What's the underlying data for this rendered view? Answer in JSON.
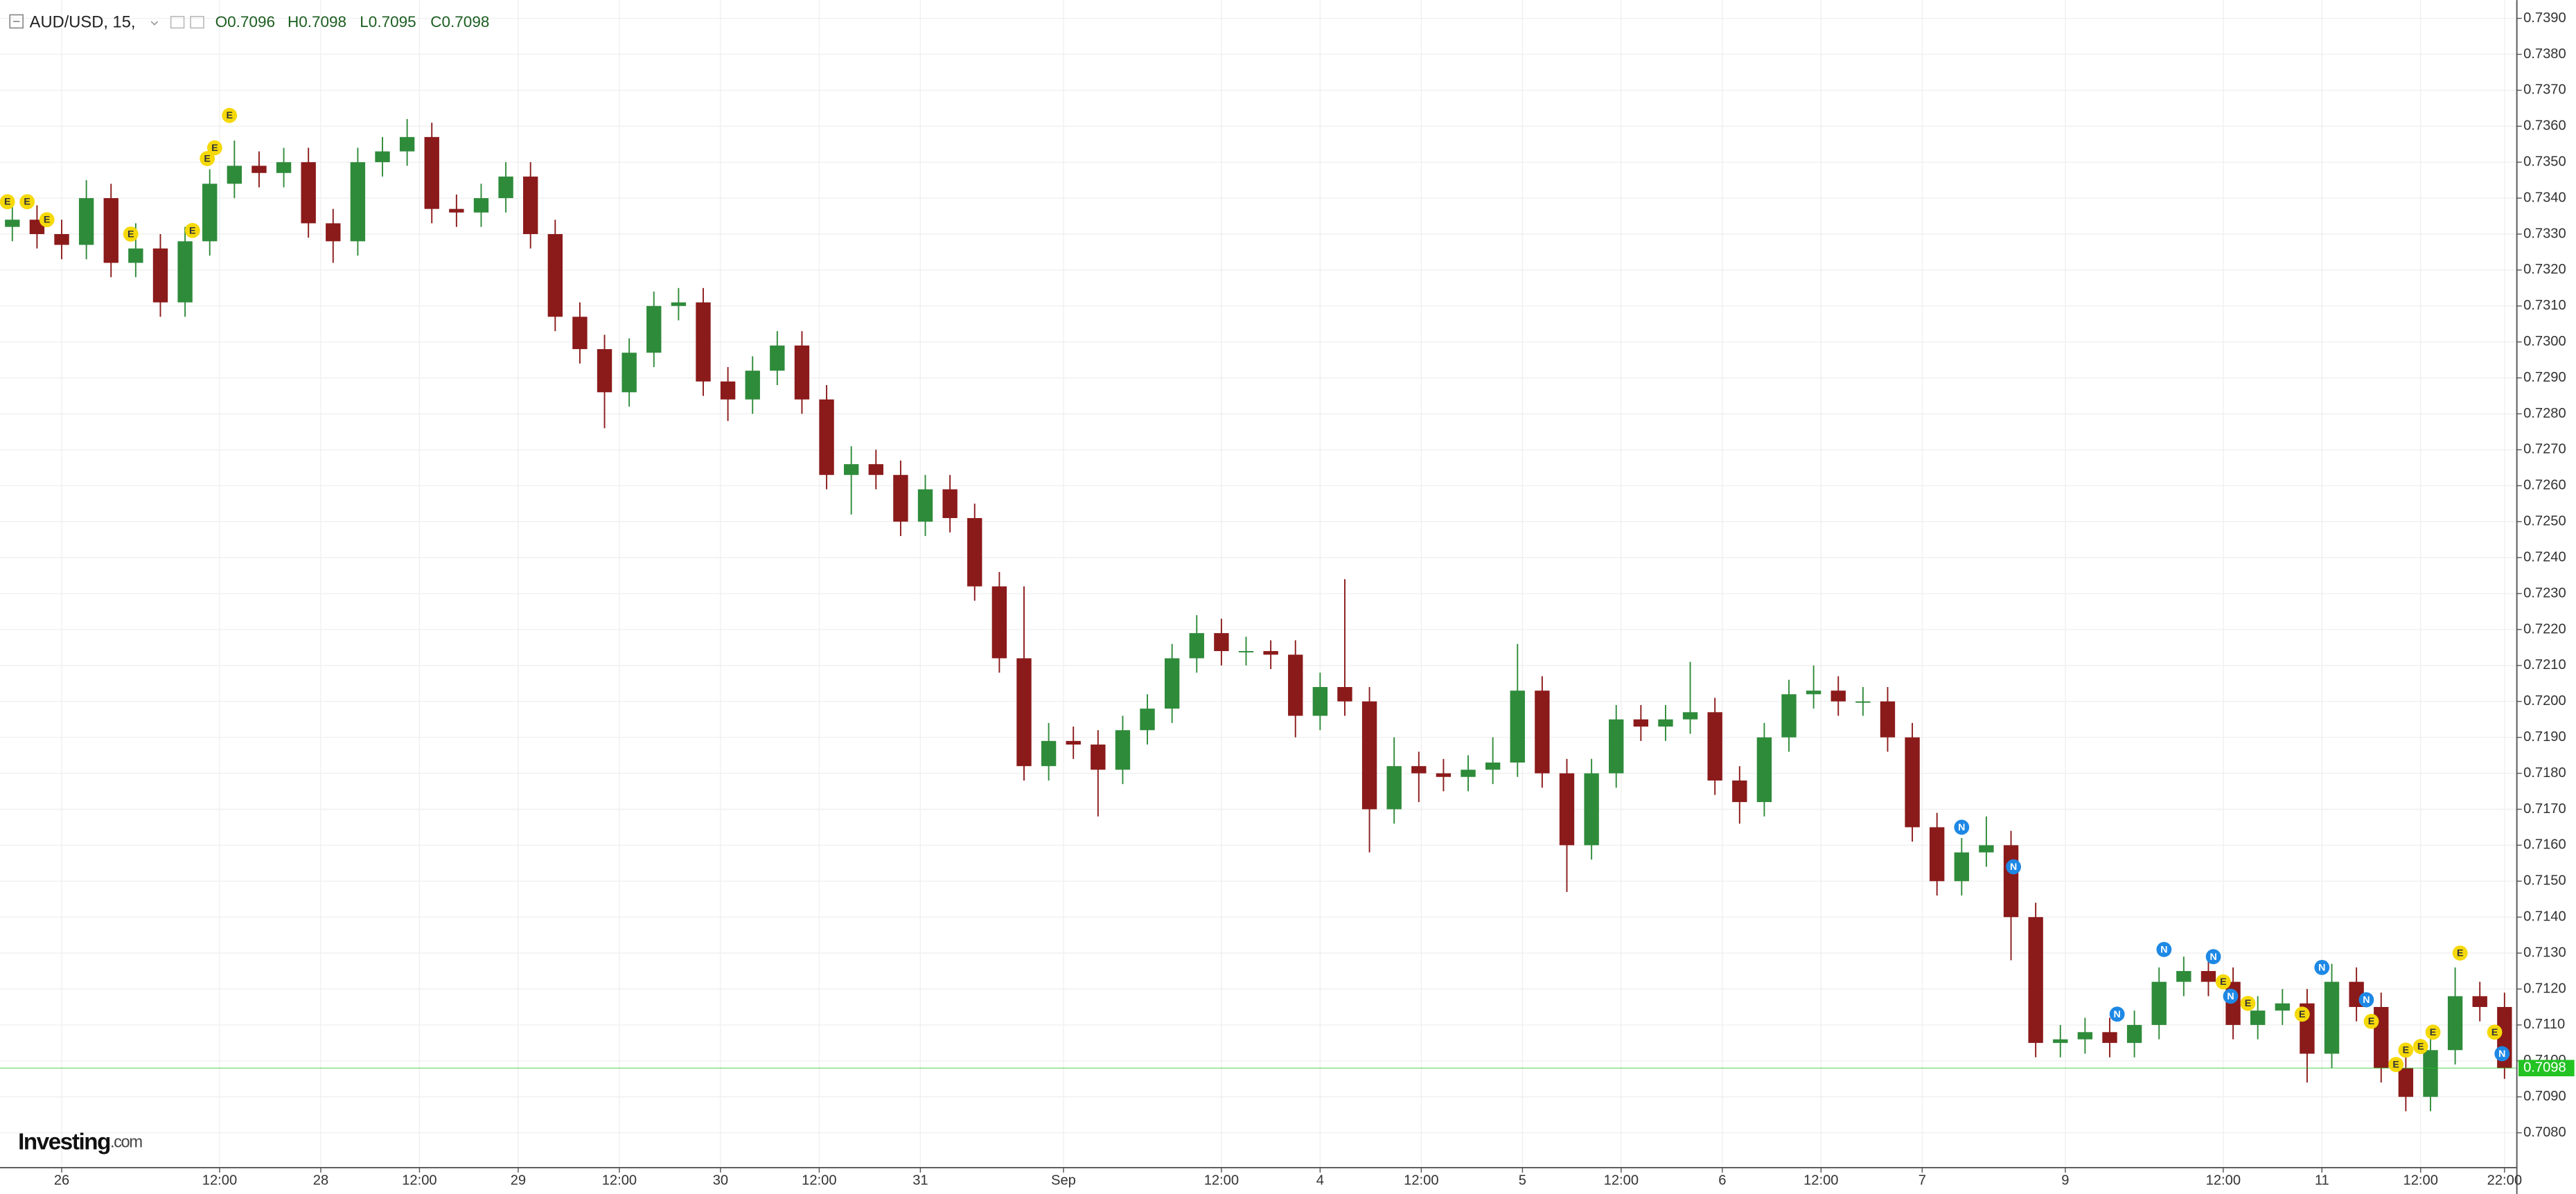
{
  "chart_data": {
    "type": "candlestick",
    "title": "AUD/USD, 15,",
    "ohlc_labels": [
      "O0.7096",
      "H0.7098",
      "L0.7095",
      "C0.7098"
    ],
    "up_color": "#2e8b3a",
    "down_color": "#8b1a1a",
    "grid": true,
    "xlim": [
      0,
      102
    ],
    "ylim": [
      0.70703,
      0.73951
    ],
    "xticks": [
      {
        "value": 2.5,
        "label": "26"
      },
      {
        "value": 8.9,
        "label": "12:00"
      },
      {
        "value": 13.0,
        "label": "28"
      },
      {
        "value": 17.0,
        "label": "12:00"
      },
      {
        "value": 21.0,
        "label": "29"
      },
      {
        "value": 25.1,
        "label": "12:00"
      },
      {
        "value": 29.2,
        "label": "30"
      },
      {
        "value": 33.2,
        "label": "12:00"
      },
      {
        "value": 37.3,
        "label": "31"
      },
      {
        "value": 43.1,
        "label": "Sep"
      },
      {
        "value": 49.5,
        "label": "12:00"
      },
      {
        "value": 53.5,
        "label": "4"
      },
      {
        "value": 57.6,
        "label": "12:00"
      },
      {
        "value": 61.7,
        "label": "5"
      },
      {
        "value": 65.7,
        "label": "12:00"
      },
      {
        "value": 69.8,
        "label": "6"
      },
      {
        "value": 73.8,
        "label": "12:00"
      },
      {
        "value": 77.9,
        "label": "7"
      },
      {
        "value": 83.7,
        "label": "9"
      },
      {
        "value": 90.1,
        "label": "12:00"
      },
      {
        "value": 94.1,
        "label": "11"
      },
      {
        "value": 98.1,
        "label": "12:00"
      },
      {
        "value": 101.5,
        "label": "22:00"
      }
    ],
    "yticks": [
      {
        "value": 0.708,
        "label": "0.7080"
      },
      {
        "value": 0.709,
        "label": "0.7090"
      },
      {
        "value": 0.71,
        "label": "0.7100"
      },
      {
        "value": 0.711,
        "label": "0.7110"
      },
      {
        "value": 0.712,
        "label": "0.7120"
      },
      {
        "value": 0.713,
        "label": "0.7130"
      },
      {
        "value": 0.714,
        "label": "0.7140"
      },
      {
        "value": 0.715,
        "label": "0.7150"
      },
      {
        "value": 0.716,
        "label": "0.7160"
      },
      {
        "value": 0.717,
        "label": "0.7170"
      },
      {
        "value": 0.718,
        "label": "0.7180"
      },
      {
        "value": 0.719,
        "label": "0.7190"
      },
      {
        "value": 0.72,
        "label": "0.7200"
      },
      {
        "value": 0.721,
        "label": "0.7210"
      },
      {
        "value": 0.722,
        "label": "0.7220"
      },
      {
        "value": 0.723,
        "label": "0.7230"
      },
      {
        "value": 0.724,
        "label": "0.7240"
      },
      {
        "value": 0.725,
        "label": "0.7250"
      },
      {
        "value": 0.726,
        "label": "0.7260"
      },
      {
        "value": 0.727,
        "label": "0.7270"
      },
      {
        "value": 0.728,
        "label": "0.7280"
      },
      {
        "value": 0.729,
        "label": "0.7290"
      },
      {
        "value": 0.73,
        "label": "0.7300"
      },
      {
        "value": 0.731,
        "label": "0.7310"
      },
      {
        "value": 0.732,
        "label": "0.7320"
      },
      {
        "value": 0.733,
        "label": "0.7330"
      },
      {
        "value": 0.734,
        "label": "0.7340"
      },
      {
        "value": 0.735,
        "label": "0.7350"
      },
      {
        "value": 0.736,
        "label": "0.7360"
      },
      {
        "value": 0.737,
        "label": "0.7370"
      },
      {
        "value": 0.738,
        "label": "0.7380"
      },
      {
        "value": 0.739,
        "label": "0.7390"
      }
    ],
    "open": [
      0.7332,
      0.7334,
      0.733,
      0.7327,
      0.734,
      0.7322,
      0.7326,
      0.7311,
      0.7328,
      0.7344,
      0.7349,
      0.7347,
      0.735,
      0.7333,
      0.7328,
      0.735,
      0.7353,
      0.7357,
      0.7337,
      0.7336,
      0.734,
      0.7346,
      0.733,
      0.7307,
      0.7298,
      0.7286,
      0.7297,
      0.731,
      0.7311,
      0.7289,
      0.7284,
      0.7292,
      0.7299,
      0.7284,
      0.7263,
      0.7266,
      0.7263,
      0.725,
      0.7259,
      0.7251,
      0.7232,
      0.7212,
      0.7182,
      0.7189,
      0.7188,
      0.7181,
      0.7192,
      0.7198,
      0.7212,
      0.7219,
      0.7214,
      0.7214,
      0.7213,
      0.7196,
      0.7204,
      0.72,
      0.717,
      0.7182,
      0.718,
      0.7179,
      0.7181,
      0.7183,
      0.7203,
      0.718,
      0.716,
      0.718,
      0.7195,
      0.7193,
      0.7195,
      0.7197,
      0.7178,
      0.7172,
      0.719,
      0.7202,
      0.7203,
      0.72,
      0.72,
      0.719,
      0.7165,
      0.715,
      0.7158,
      0.716,
      0.714,
      0.7105,
      0.7106,
      0.7108,
      0.7105,
      0.711,
      0.7122,
      0.7125,
      0.7122,
      0.711,
      0.7114,
      0.7116,
      0.7102,
      0.7122,
      0.7115,
      0.7098,
      0.709,
      0.7103,
      0.7118,
      0.7115
    ],
    "high": [
      0.7338,
      0.7338,
      0.7334,
      0.7345,
      0.7344,
      0.7333,
      0.733,
      0.7332,
      0.7348,
      0.7356,
      0.7353,
      0.7354,
      0.7354,
      0.7337,
      0.7354,
      0.7357,
      0.7362,
      0.7361,
      0.7341,
      0.7344,
      0.735,
      0.735,
      0.7334,
      0.7311,
      0.7302,
      0.7301,
      0.7314,
      0.7315,
      0.7315,
      0.7293,
      0.7296,
      0.7303,
      0.7303,
      0.7288,
      0.7271,
      0.727,
      0.7267,
      0.7263,
      0.7263,
      0.7255,
      0.7236,
      0.7232,
      0.7194,
      0.7193,
      0.7192,
      0.7196,
      0.7202,
      0.7216,
      0.7224,
      0.7223,
      0.7218,
      0.7217,
      0.7217,
      0.7208,
      0.7234,
      0.7204,
      0.719,
      0.7186,
      0.7184,
      0.7185,
      0.719,
      0.7216,
      0.7207,
      0.7184,
      0.7184,
      0.7199,
      0.7199,
      0.7199,
      0.7211,
      0.7201,
      0.7182,
      0.7194,
      0.7206,
      0.721,
      0.7207,
      0.7204,
      0.7204,
      0.7194,
      0.7169,
      0.7162,
      0.7168,
      0.7164,
      0.7144,
      0.711,
      0.7112,
      0.7112,
      0.7114,
      0.7126,
      0.7129,
      0.7129,
      0.7126,
      0.7118,
      0.712,
      0.712,
      0.7127,
      0.7126,
      0.7119,
      0.7102,
      0.7107,
      0.7126,
      0.7122,
      0.7119
    ],
    "low": [
      0.7328,
      0.7326,
      0.7323,
      0.7323,
      0.7318,
      0.7318,
      0.7307,
      0.7307,
      0.7324,
      0.734,
      0.7343,
      0.7343,
      0.7329,
      0.7322,
      0.7324,
      0.7346,
      0.7349,
      0.7333,
      0.7332,
      0.7332,
      0.7336,
      0.7326,
      0.7303,
      0.7294,
      0.7276,
      0.7282,
      0.7293,
      0.7306,
      0.7285,
      0.7278,
      0.728,
      0.7288,
      0.728,
      0.7259,
      0.7252,
      0.7259,
      0.7246,
      0.7246,
      0.7247,
      0.7228,
      0.7208,
      0.7178,
      0.7178,
      0.7184,
      0.7168,
      0.7177,
      0.7188,
      0.7194,
      0.7208,
      0.721,
      0.721,
      0.7209,
      0.719,
      0.7192,
      0.7196,
      0.7158,
      0.7166,
      0.7172,
      0.7175,
      0.7175,
      0.7177,
      0.7179,
      0.7176,
      0.7147,
      0.7156,
      0.7176,
      0.7189,
      0.7189,
      0.7191,
      0.7174,
      0.7166,
      0.7168,
      0.7186,
      0.7198,
      0.7196,
      0.7196,
      0.7186,
      0.7161,
      0.7146,
      0.7146,
      0.7154,
      0.7128,
      0.7101,
      0.7101,
      0.7102,
      0.7101,
      0.7101,
      0.7106,
      0.7118,
      0.7118,
      0.7106,
      0.7106,
      0.711,
      0.7094,
      0.7098,
      0.7111,
      0.7094,
      0.7086,
      0.7086,
      0.7099,
      0.7111,
      0.7095
    ],
    "close": [
      0.7334,
      0.733,
      0.7327,
      0.734,
      0.7322,
      0.7326,
      0.7311,
      0.7328,
      0.7344,
      0.7349,
      0.7347,
      0.735,
      0.7333,
      0.7328,
      0.735,
      0.7353,
      0.7357,
      0.7337,
      0.7336,
      0.734,
      0.7346,
      0.733,
      0.7307,
      0.7298,
      0.7286,
      0.7297,
      0.731,
      0.7311,
      0.7289,
      0.7284,
      0.7292,
      0.7299,
      0.7284,
      0.7263,
      0.7266,
      0.7263,
      0.725,
      0.7259,
      0.7251,
      0.7232,
      0.7212,
      0.7182,
      0.7189,
      0.7188,
      0.7181,
      0.7192,
      0.7198,
      0.7212,
      0.7219,
      0.7214,
      0.7214,
      0.7213,
      0.7196,
      0.7204,
      0.72,
      0.717,
      0.7182,
      0.718,
      0.7179,
      0.7181,
      0.7183,
      0.7203,
      0.718,
      0.716,
      0.718,
      0.7195,
      0.7193,
      0.7195,
      0.7197,
      0.7178,
      0.7172,
      0.719,
      0.7202,
      0.7203,
      0.72,
      0.72,
      0.719,
      0.7165,
      0.715,
      0.7158,
      0.716,
      0.714,
      0.7105,
      0.7106,
      0.7108,
      0.7105,
      0.711,
      0.7122,
      0.7125,
      0.7122,
      0.711,
      0.7114,
      0.7116,
      0.7102,
      0.7122,
      0.7115,
      0.7098,
      0.709,
      0.7103,
      0.7118,
      0.7115,
      0.7098
    ],
    "last_price": 0.7098,
    "last_price_color": "#22c322",
    "events": [
      {
        "label": "E",
        "x": 0.3,
        "y": 0.7339
      },
      {
        "label": "E",
        "x": 1.1,
        "y": 0.7339
      },
      {
        "label": "E",
        "x": 1.9,
        "y": 0.7334
      },
      {
        "label": "E",
        "x": 5.3,
        "y": 0.733
      },
      {
        "label": "E",
        "x": 7.8,
        "y": 0.7331
      },
      {
        "label": "E",
        "x": 8.4,
        "y": 0.7351
      },
      {
        "label": "E",
        "x": 8.7,
        "y": 0.7354
      },
      {
        "label": "E",
        "x": 9.3,
        "y": 0.7363
      },
      {
        "label": "N",
        "x": 79.5,
        "y": 0.7165
      },
      {
        "label": "N",
        "x": 81.6,
        "y": 0.7154
      },
      {
        "label": "N",
        "x": 85.8,
        "y": 0.7113
      },
      {
        "label": "N",
        "x": 87.7,
        "y": 0.7131
      },
      {
        "label": "N",
        "x": 89.7,
        "y": 0.7129
      },
      {
        "label": "E",
        "x": 90.1,
        "y": 0.7122
      },
      {
        "label": "N",
        "x": 90.4,
        "y": 0.7118
      },
      {
        "label": "E",
        "x": 91.1,
        "y": 0.7116
      },
      {
        "label": "E",
        "x": 93.3,
        "y": 0.7113
      },
      {
        "label": "N",
        "x": 94.1,
        "y": 0.7126
      },
      {
        "label": "N",
        "x": 95.9,
        "y": 0.7117
      },
      {
        "label": "E",
        "x": 96.1,
        "y": 0.7111
      },
      {
        "label": "E",
        "x": 97.1,
        "y": 0.7099
      },
      {
        "label": "E",
        "x": 97.5,
        "y": 0.7103
      },
      {
        "label": "E",
        "x": 98.1,
        "y": 0.7104
      },
      {
        "label": "E",
        "x": 98.6,
        "y": 0.7108
      },
      {
        "label": "E",
        "x": 99.7,
        "y": 0.713
      },
      {
        "label": "E",
        "x": 101.1,
        "y": 0.7108
      },
      {
        "label": "N",
        "x": 101.4,
        "y": 0.7102
      }
    ],
    "event_colors": {
      "E": "#f5d90a",
      "N": "#1e88e5"
    }
  },
  "logo": {
    "name": "Investing",
    "suffix": ".com"
  }
}
